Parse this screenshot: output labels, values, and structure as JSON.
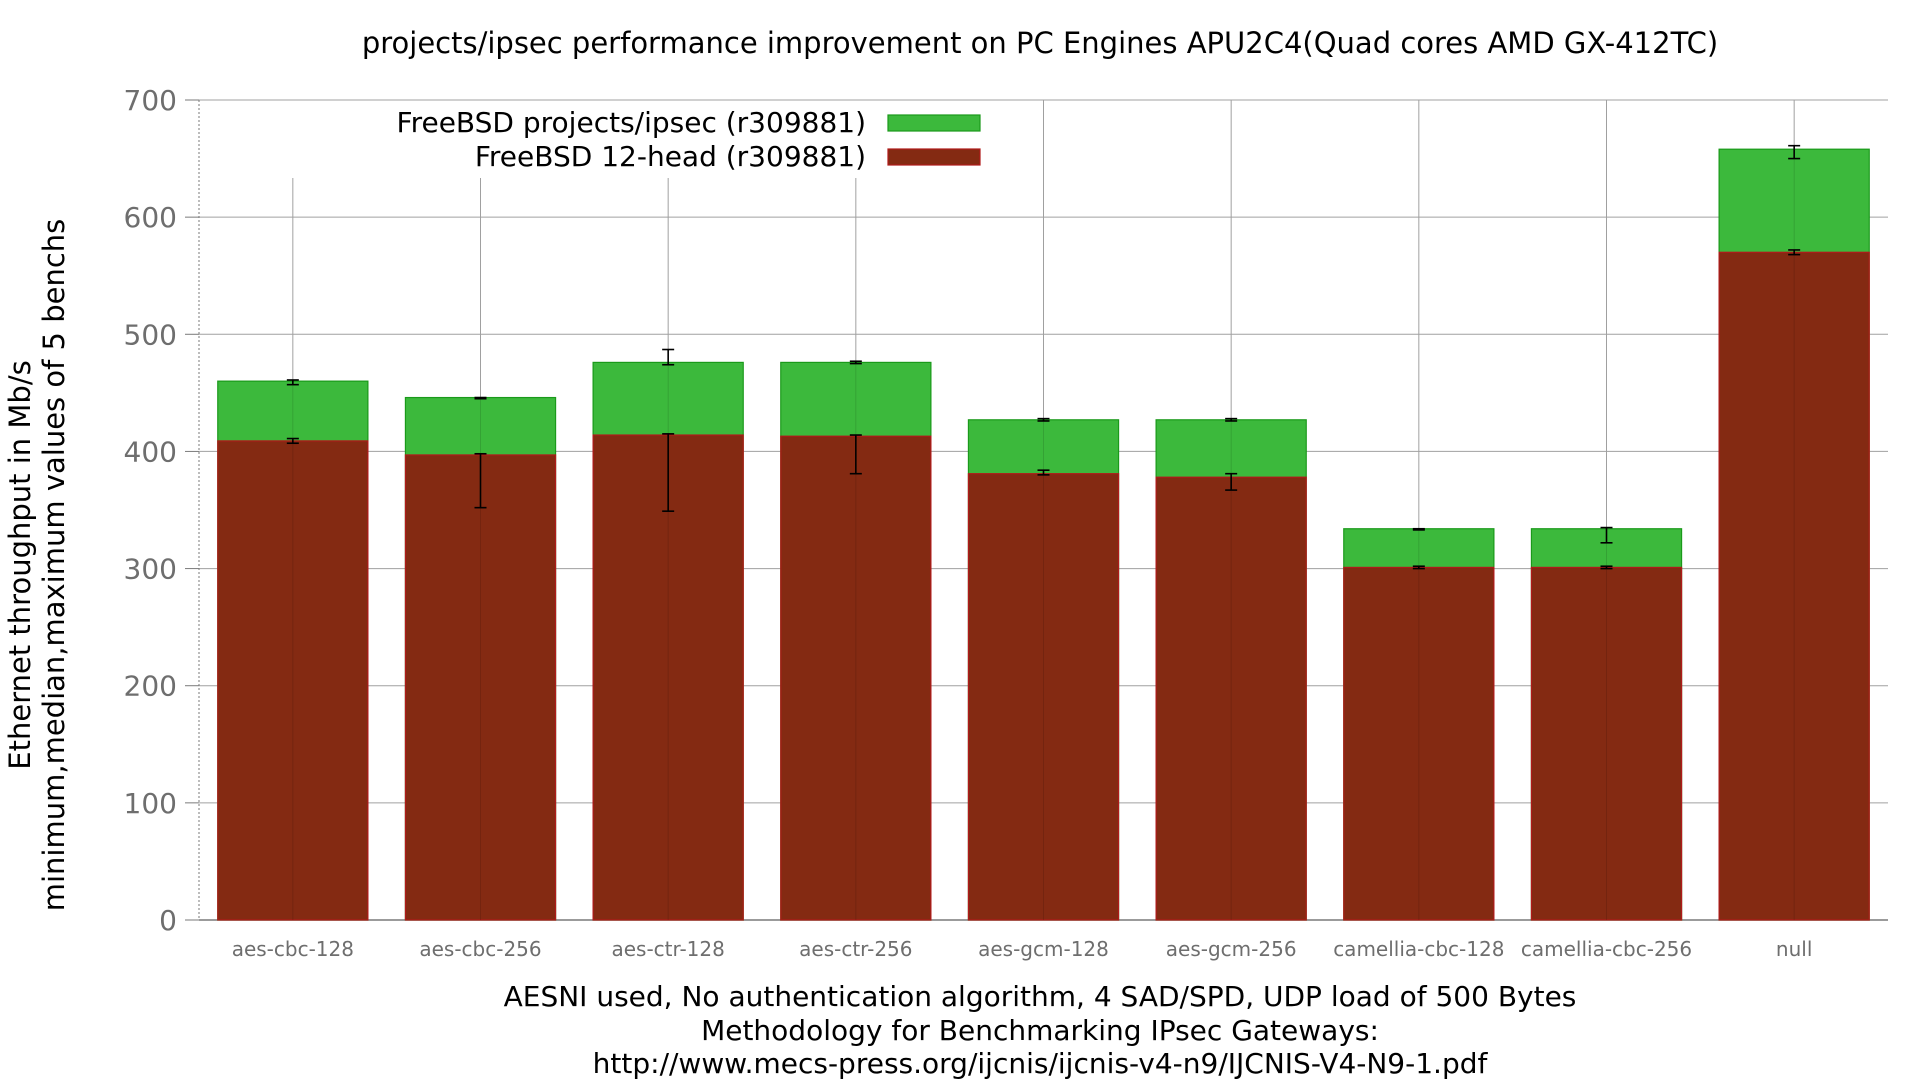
{
  "chart_data": {
    "type": "bar",
    "title": "projects/ipsec performance improvement on PC Engines APU2C4(Quad cores AMD GX-412TC)",
    "ylabel": [
      "Ethernet throughput in Mb/s",
      "minimum,median,maximum values of 5 benchs"
    ],
    "xlabel": [
      "AESNI used, No authentication algorithm, 4 SAD/SPD, UDP load of 500 Bytes",
      "Methodology for Benchmarking IPsec Gateways:",
      "http://www.mecs-press.org/ijcnis/ijcnis-v4-n9/IJCNIS-V4-N9-1.pdf"
    ],
    "ylim": [
      0,
      700
    ],
    "yticks": [
      0,
      100,
      200,
      300,
      400,
      500,
      600,
      700
    ],
    "grid": true,
    "legend_position": "top-left",
    "categories": [
      "aes-cbc-128",
      "aes-cbc-256",
      "aes-ctr-128",
      "aes-ctr-256",
      "aes-gcm-128",
      "aes-gcm-256",
      "camellia-cbc-128",
      "camellia-cbc-256",
      "null"
    ],
    "series": [
      {
        "name": "FreeBSD projects/ipsec (r309881)",
        "color": "#3cb93c",
        "edge": "#1a9a1a",
        "values": [
          460,
          446,
          476,
          476,
          427,
          427,
          334,
          334,
          658
        ],
        "min": [
          457,
          445,
          474,
          475,
          426,
          426,
          333,
          322,
          650
        ],
        "max": [
          461,
          446,
          487,
          477,
          428,
          428,
          334,
          335,
          661
        ]
      },
      {
        "name": "FreeBSD 12-head (r309881)",
        "color": "#842a12",
        "edge": "#b01a1a",
        "values": [
          409,
          397,
          414,
          413,
          381,
          378,
          301,
          301,
          570
        ],
        "min": [
          407,
          352,
          349,
          381,
          380,
          367,
          300,
          300,
          568
        ],
        "max": [
          411,
          398,
          415,
          414,
          384,
          381,
          302,
          302,
          572
        ]
      }
    ]
  }
}
